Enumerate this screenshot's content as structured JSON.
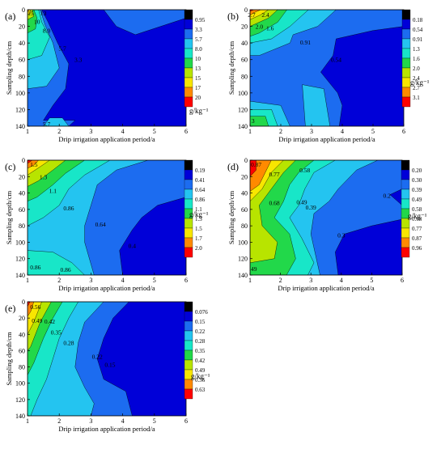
{
  "chart_data": [
    {
      "panel_label": "(a)",
      "type": "heatmap",
      "xlabel": "Drip irrigation application period/a",
      "ylabel": "Sampling depth/cm",
      "x_ticks": [
        "1",
        "2",
        "3",
        "4",
        "5",
        "6"
      ],
      "y_ticks": [
        "0",
        "20",
        "40",
        "60",
        "80",
        "100",
        "120",
        "140"
      ],
      "xlim": [
        1,
        6
      ],
      "ylim": [
        0,
        140
      ],
      "y_inverted": true,
      "unit_label": "g/kg⁻¹",
      "legend_levels": [
        "0.95",
        "3.3",
        "5.7",
        "8.0",
        "10",
        "13",
        "15",
        "17",
        "20"
      ],
      "legend_colors": [
        "#000000",
        "#0000d8",
        "#1c6cf0",
        "#24c4f0",
        "#18e6c8",
        "#22d84a",
        "#b8e400",
        "#f8e600",
        "#ff8a00",
        "#ff0000"
      ],
      "contour_labels": [
        {
          "text": "15",
          "x": 1.1,
          "y": 4
        },
        {
          "text": "13",
          "x": 1.5,
          "y": 4
        },
        {
          "text": "10",
          "x": 1.3,
          "y": 14
        },
        {
          "text": "8.0",
          "x": 1.6,
          "y": 25
        },
        {
          "text": "5.7",
          "x": 2.1,
          "y": 46
        },
        {
          "text": "3.3",
          "x": 2.6,
          "y": 60
        },
        {
          "text": "5.7",
          "x": 1.6,
          "y": 137
        }
      ]
    },
    {
      "panel_label": "(b)",
      "type": "heatmap",
      "xlabel": "Drip irrigation application period/a",
      "ylabel": "Sampling depth/cm",
      "x_ticks": [
        "1",
        "2",
        "3",
        "4",
        "5",
        "6"
      ],
      "y_ticks": [
        "0",
        "20",
        "40",
        "60",
        "80",
        "100",
        "120",
        "140"
      ],
      "xlim": [
        1,
        6
      ],
      "ylim": [
        0,
        140
      ],
      "y_inverted": true,
      "unit_label": "g/kg⁻¹",
      "legend_levels": [
        "0.18",
        "0.54",
        "0.91",
        "1.3",
        "1.6",
        "2.0",
        "2.4",
        "2.7",
        "3.1"
      ],
      "legend_colors": [
        "#000000",
        "#0000d8",
        "#1c6cf0",
        "#24c4f0",
        "#18e6c8",
        "#22d84a",
        "#b8e400",
        "#f8e600",
        "#ff8a00",
        "#ff0000"
      ],
      "contour_labels": [
        {
          "text": "2.7",
          "x": 1.05,
          "y": 6
        },
        {
          "text": "2.4",
          "x": 1.5,
          "y": 6
        },
        {
          "text": "2.0",
          "x": 1.3,
          "y": 20
        },
        {
          "text": "1.6",
          "x": 1.65,
          "y": 22
        },
        {
          "text": "0.91",
          "x": 2.8,
          "y": 39
        },
        {
          "text": "0.54",
          "x": 3.8,
          "y": 60
        },
        {
          "text": "3",
          "x": 1.1,
          "y": 133
        }
      ]
    },
    {
      "panel_label": "(c)",
      "type": "heatmap",
      "xlabel": "Drip irrigation application period/a",
      "ylabel": "Sampling depth/cm",
      "x_ticks": [
        "1",
        "2",
        "3",
        "4",
        "5",
        "6"
      ],
      "y_ticks": [
        "0",
        "20",
        "40",
        "60",
        "80",
        "100",
        "120",
        "140"
      ],
      "xlim": [
        1,
        6
      ],
      "ylim": [
        0,
        140
      ],
      "y_inverted": true,
      "unit_label": "g/kg⁻¹",
      "legend_levels": [
        "0.19",
        "0.41",
        "0.64",
        "0.86",
        "1.1",
        "1.3",
        "1.5",
        "1.7",
        "2.0"
      ],
      "legend_colors": [
        "#000000",
        "#0000d8",
        "#1c6cf0",
        "#24c4f0",
        "#18e6c8",
        "#22d84a",
        "#b8e400",
        "#f8e600",
        "#ff8a00",
        "#ff0000"
      ],
      "contour_labels": [
        {
          "text": "1.5",
          "x": 1.2,
          "y": 5
        },
        {
          "text": "1.3",
          "x": 1.5,
          "y": 20
        },
        {
          "text": "1.1",
          "x": 1.8,
          "y": 37
        },
        {
          "text": "0.86",
          "x": 2.3,
          "y": 58
        },
        {
          "text": "0.64",
          "x": 3.3,
          "y": 78
        },
        {
          "text": "0.4",
          "x": 4.3,
          "y": 104
        },
        {
          "text": "0.86",
          "x": 1.25,
          "y": 130
        },
        {
          "text": "0.86",
          "x": 2.2,
          "y": 133
        }
      ]
    },
    {
      "panel_label": "(d)",
      "type": "heatmap",
      "xlabel": "Drip irrigation application period/a",
      "ylabel": "Sampling depth/cm",
      "x_ticks": [
        "1",
        "2",
        "3",
        "4",
        "5",
        "6"
      ],
      "y_ticks": [
        "0",
        "20",
        "40",
        "60",
        "80",
        "100",
        "120",
        "140"
      ],
      "xlim": [
        1,
        6
      ],
      "ylim": [
        0,
        140
      ],
      "y_inverted": true,
      "unit_label": "g/kg⁻¹",
      "legend_levels": [
        "0.20",
        "0.30",
        "0.39",
        "0.49",
        "0.58",
        "0.68",
        "0.77",
        "0.87",
        "0.96"
      ],
      "legend_colors": [
        "#000000",
        "#0000d8",
        "#1c6cf0",
        "#24c4f0",
        "#18e6c8",
        "#22d84a",
        "#b8e400",
        "#f8e600",
        "#ff8a00",
        "#ff0000"
      ],
      "contour_labels": [
        {
          "text": "0.87",
          "x": 1.2,
          "y": 5
        },
        {
          "text": "0.77",
          "x": 1.8,
          "y": 17
        },
        {
          "text": "0.58",
          "x": 2.8,
          "y": 12
        },
        {
          "text": "0.68",
          "x": 1.8,
          "y": 52
        },
        {
          "text": "0.49",
          "x": 2.7,
          "y": 51
        },
        {
          "text": "0.39",
          "x": 3.0,
          "y": 57
        },
        {
          "text": "0.2",
          "x": 5.5,
          "y": 43
        },
        {
          "text": "0.3",
          "x": 4.0,
          "y": 91
        },
        {
          "text": ".49",
          "x": 1.1,
          "y": 132
        }
      ]
    },
    {
      "panel_label": "(e)",
      "type": "heatmap",
      "xlabel": "Drip irrigation application period/a",
      "ylabel": "Sampling depth/cm",
      "x_ticks": [
        "1",
        "2",
        "3",
        "4",
        "5",
        "6"
      ],
      "y_ticks": [
        "0",
        "20",
        "40",
        "60",
        "80",
        "100",
        "120",
        "140"
      ],
      "xlim": [
        1,
        6
      ],
      "ylim": [
        0,
        140
      ],
      "y_inverted": true,
      "unit_label": "g/kg⁻¹",
      "legend_levels": [
        "0.076",
        "0.15",
        "0.22",
        "0.28",
        "0.35",
        "0.42",
        "0.49",
        "0.56",
        "0.63"
      ],
      "legend_colors": [
        "#000000",
        "#0000d8",
        "#1c6cf0",
        "#24c4f0",
        "#18e6c8",
        "#22d84a",
        "#b8e400",
        "#f8e600",
        "#ff8a00",
        "#ff0000"
      ],
      "contour_labels": [
        {
          "text": "0.56",
          "x": 1.25,
          "y": 6
        },
        {
          "text": "0.49",
          "x": 1.3,
          "y": 23
        },
        {
          "text": "0.42",
          "x": 1.7,
          "y": 24
        },
        {
          "text": "0.35",
          "x": 1.9,
          "y": 37
        },
        {
          "text": "0.28",
          "x": 2.3,
          "y": 50
        },
        {
          "text": "0.22",
          "x": 3.2,
          "y": 67
        },
        {
          "text": "0.15",
          "x": 3.6,
          "y": 77
        }
      ]
    }
  ]
}
